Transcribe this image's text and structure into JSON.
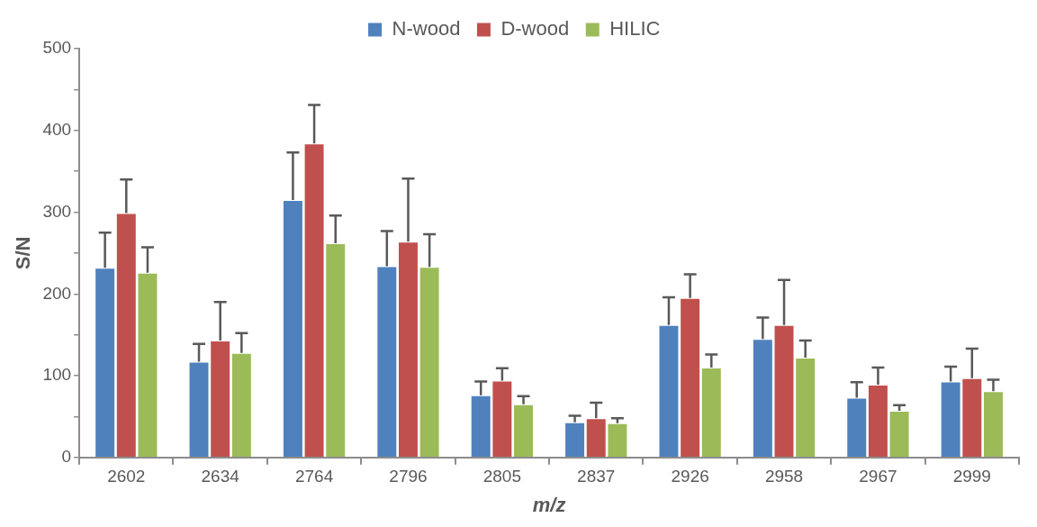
{
  "chart_data": {
    "type": "bar",
    "xlabel": "m/z",
    "ylabel": "S/N",
    "categories": [
      "2602",
      "2634",
      "2764",
      "2796",
      "2805",
      "2837",
      "2926",
      "2958",
      "2967",
      "2999"
    ],
    "series": [
      {
        "name": "N-wood",
        "color": "#4f81bd",
        "values": [
          232,
          117,
          315,
          234,
          76,
          43,
          162,
          145,
          73,
          93
        ],
        "errors": [
          [
            232,
            275
          ],
          [
            117,
            139
          ],
          [
            315,
            373
          ],
          [
            234,
            277
          ],
          [
            76,
            93
          ],
          [
            43,
            51
          ],
          [
            162,
            196
          ],
          [
            145,
            171
          ],
          [
            73,
            92
          ],
          [
            93,
            111
          ]
        ]
      },
      {
        "name": "D-wood",
        "color": "#c0504d",
        "values": [
          299,
          143,
          384,
          264,
          94,
          48,
          195,
          162,
          89,
          97
        ],
        "errors": [
          [
            299,
            340
          ],
          [
            143,
            190
          ],
          [
            384,
            431
          ],
          [
            264,
            341
          ],
          [
            94,
            109
          ],
          [
            48,
            67
          ],
          [
            195,
            224
          ],
          [
            162,
            217
          ],
          [
            89,
            110
          ],
          [
            97,
            133
          ]
        ]
      },
      {
        "name": "HILIC",
        "color": "#9bbb59",
        "values": [
          226,
          128,
          262,
          233,
          65,
          42,
          110,
          122,
          57,
          81
        ],
        "errors": [
          [
            226,
            257
          ],
          [
            128,
            152
          ],
          [
            262,
            296
          ],
          [
            233,
            273
          ],
          [
            65,
            75
          ],
          [
            42,
            48
          ],
          [
            110,
            126
          ],
          [
            122,
            143
          ],
          [
            57,
            64
          ],
          [
            81,
            95
          ]
        ]
      }
    ],
    "ylim": [
      0,
      500
    ],
    "yticks": [
      0,
      {
        "value": 50,
        "label": null
      },
      100,
      {
        "value": 150,
        "label": null
      },
      200,
      {
        "value": 250,
        "label": null
      },
      300,
      {
        "value": 350,
        "label": null
      },
      400,
      {
        "value": 450,
        "label": null
      },
      500
    ],
    "legend": "top",
    "grid": false
  }
}
